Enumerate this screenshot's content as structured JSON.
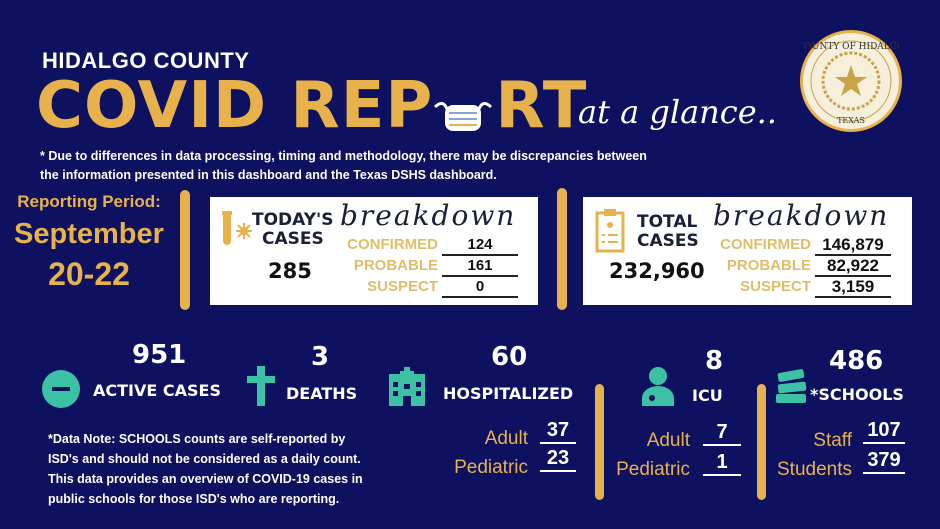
{
  "header": {
    "subtitle": "HIDALGO COUNTY",
    "title_part1": "COVID REP",
    "title_part2": "RT",
    "tagline": "at a glance..",
    "seal_text": "THE COUNTY OF HIDALGO · TEXAS"
  },
  "disclaimer": [
    "* Due to differences in data processing, timing and methodology, there may be discrepancies between",
    "the information presented in this dashboard and the Texas DSHS dashboard."
  ],
  "reporting": {
    "label": "Reporting Period:",
    "month": "September",
    "days": "20-22"
  },
  "today": {
    "title1": "TODAY'S",
    "title2": "CASES",
    "breakdown": "breakdown",
    "total": "285",
    "rows": [
      {
        "label": "CONFIRMED",
        "value": "124"
      },
      {
        "label": "PROBABLE",
        "value": "161"
      },
      {
        "label": "SUSPECT",
        "value": "0"
      }
    ]
  },
  "total": {
    "title1": "TOTAL",
    "title2": "CASES",
    "breakdown": "breakdown",
    "total": "232,960",
    "rows": [
      {
        "label": "CONFIRMED",
        "value": "146,879"
      },
      {
        "label": "PROBABLE",
        "value": "82,922"
      },
      {
        "label": "SUSPECT",
        "value": "3,159"
      }
    ]
  },
  "stats": {
    "active": {
      "value": "951",
      "label": "ACTIVE CASES"
    },
    "deaths": {
      "value": "3",
      "label": "DEATHS"
    },
    "hospitalized": {
      "value": "60",
      "label": "HOSPITALIZED",
      "adult_label": "Adult",
      "adult": "37",
      "ped_label": "Pediatric",
      "ped": "23"
    },
    "icu": {
      "value": "8",
      "label": "ICU",
      "adult_label": "Adult",
      "adult": "7",
      "ped_label": "Pediatric",
      "ped": "1"
    },
    "schools": {
      "value": "486",
      "label": "*SCHOOLS",
      "staff_label": "Staff",
      "staff": "107",
      "students_label": "Students",
      "students": "379"
    }
  },
  "note": [
    "*Data Note: SCHOOLS counts are self-reported by",
    "ISD's and should not be considered as a daily count.",
    "This data provides an overview of COVID-19 cases in",
    "public schools for those ISD's who are reporting."
  ],
  "colors": {
    "background": "#0e1060",
    "gold": "#e7b24c",
    "teal": "#3cc1a5"
  }
}
